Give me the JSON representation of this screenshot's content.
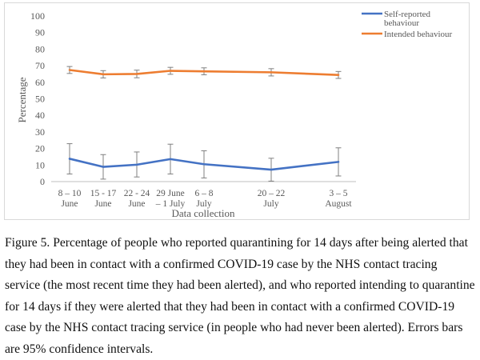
{
  "chart_data": {
    "type": "line",
    "categories": [
      [
        "8 – 10",
        "June"
      ],
      [
        "15 - 17",
        "June"
      ],
      [
        "22 - 24",
        "June"
      ],
      [
        "29 June",
        "– 1 July"
      ],
      [
        "6 – 8",
        "July"
      ],
      [
        "20 – 22",
        "July"
      ],
      [
        "3 – 5",
        "August"
      ]
    ],
    "x": [
      "2020-06-09",
      "2020-06-16",
      "2020-06-23",
      "2020-06-30",
      "2020-07-07",
      "2020-07-21",
      "2020-08-04"
    ],
    "series": [
      {
        "name": "Self-reported behaviour",
        "legend_lines": [
          "Self-reported",
          "behaviour"
        ],
        "color": "#4472c4",
        "values": [
          13.8,
          8.9,
          10.2,
          13.6,
          10.5,
          7.2,
          11.9
        ],
        "ci_low": [
          4.6,
          1.5,
          2.8,
          4.6,
          2.2,
          0.3,
          3.4
        ],
        "ci_high": [
          22.9,
          16.3,
          17.9,
          22.6,
          18.6,
          14.1,
          20.4
        ]
      },
      {
        "name": "Intended behaviour",
        "legend_lines": [
          "Intended behaviour"
        ],
        "color": "#ed7d31",
        "values": [
          67.4,
          64.8,
          65.0,
          66.9,
          66.6,
          66.0,
          64.4
        ],
        "ci_low": [
          65.3,
          62.6,
          62.7,
          64.8,
          64.5,
          63.8,
          62.3
        ],
        "ci_high": [
          69.5,
          67.0,
          67.3,
          69.0,
          68.7,
          68.2,
          66.5
        ]
      }
    ],
    "xlabel": "Data collection",
    "ylabel": "Percentage",
    "ylim": [
      0,
      100
    ],
    "yticks": [
      "0",
      "10",
      "20",
      "30",
      "40",
      "50",
      "60",
      "70",
      "80",
      "90",
      "100"
    ],
    "grid": false,
    "legend_position": "top-right"
  },
  "caption": "Figure 5. Percentage of people who reported quarantining for 14 days after being alerted that they had been in contact with a confirmed COVID-19 case by the NHS contact tracing service (the most recent time they had been alerted), and who reported intending to quarantine for 14 days if they were alerted that they had been in contact with a confirmed COVID-19 case by the NHS contact tracing service (in people who had never been alerted). Errors bars are 95% confidence intervals."
}
